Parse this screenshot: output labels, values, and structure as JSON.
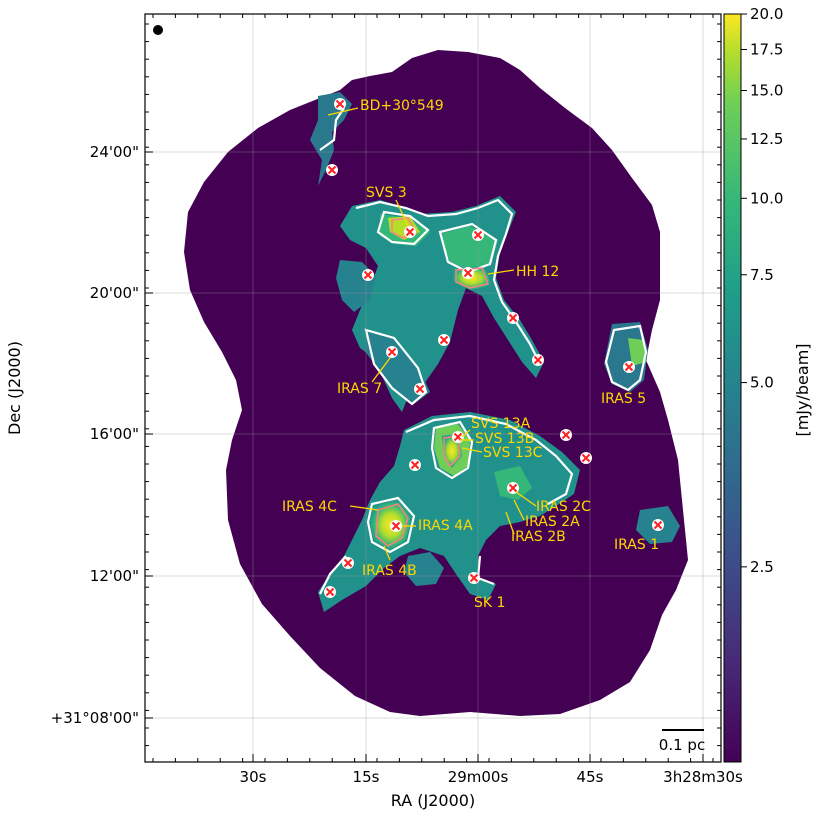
{
  "chart_data": {
    "type": "heatmap",
    "title": "",
    "xlabel": "RA (J2000)",
    "ylabel": "Dec (J2000)",
    "x_ticks": [
      "30s",
      "15s",
      "29m00s",
      "45s",
      "3h28m30s"
    ],
    "y_ticks": [
      "24'00\"",
      "20'00\"",
      "16'00\"",
      "12'00\"",
      "+31°08'00\""
    ],
    "colorbar": {
      "label": "[mJy/beam]",
      "scale": "log",
      "ticks": [
        "20.0",
        "17.5",
        "15.0",
        "12.5",
        "10.0",
        "7.5",
        "5.0",
        "2.5"
      ],
      "tick_values": [
        20.0,
        17.5,
        15.0,
        12.5,
        10.0,
        7.5,
        5.0,
        2.5
      ],
      "colormap": "viridis"
    },
    "scale_bar": "0.1 pc",
    "grid": true,
    "sources": [
      {
        "name": "BD+30°549"
      },
      {
        "name": "SVS 3"
      },
      {
        "name": "HH 12"
      },
      {
        "name": "IRAS 7"
      },
      {
        "name": "IRAS 5"
      },
      {
        "name": "SVS 13A"
      },
      {
        "name": "SVS 13B"
      },
      {
        "name": "SVS 13C"
      },
      {
        "name": "IRAS 4C"
      },
      {
        "name": "IRAS 4A"
      },
      {
        "name": "IRAS 4B"
      },
      {
        "name": "IRAS 2C"
      },
      {
        "name": "IRAS 2A"
      },
      {
        "name": "IRAS 2B"
      },
      {
        "name": "IRAS 1"
      },
      {
        "name": "SK 1"
      }
    ],
    "colors": {
      "background_map": "#440154",
      "label": "#ffd700",
      "marker": "#ff2020",
      "contour": "#ffffff"
    }
  }
}
